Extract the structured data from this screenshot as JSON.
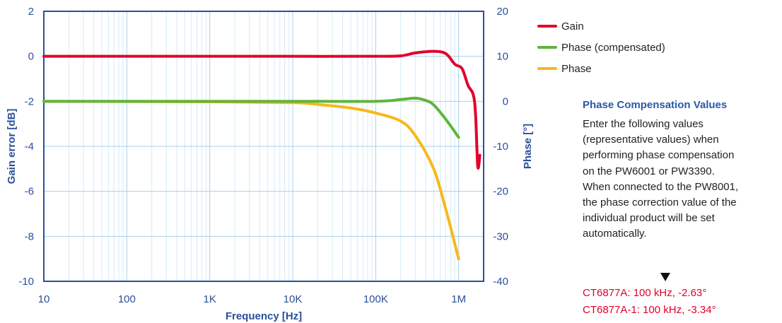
{
  "chart_data": {
    "type": "line",
    "xlabel": "Frequency [Hz]",
    "ylabel_left": "Gain error [dB]",
    "ylabel_right": "Phase [°]",
    "x_scale": "log",
    "xlim": [
      10,
      2000000
    ],
    "ylim_left": [
      -10,
      2
    ],
    "ylim_right": [
      -40,
      20
    ],
    "x_ticks": [
      {
        "value": 10,
        "label": "10"
      },
      {
        "value": 100,
        "label": "100"
      },
      {
        "value": 1000,
        "label": "1K"
      },
      {
        "value": 10000,
        "label": "10K"
      },
      {
        "value": 100000,
        "label": "100K"
      },
      {
        "value": 1000000,
        "label": "1M"
      }
    ],
    "y_ticks_left": [
      2,
      0,
      -2,
      -4,
      -6,
      -8,
      -10
    ],
    "y_ticks_right": [
      20,
      10,
      0,
      -10,
      -20,
      -30,
      -40
    ],
    "grid": true,
    "legend_position": "right",
    "series": [
      {
        "name": "Gain",
        "axis": "left",
        "color": "#e2002b",
        "x": [
          10,
          100,
          1000,
          10000,
          100000,
          200000,
          300000,
          500000,
          700000,
          900000,
          1100000,
          1300000,
          1500000,
          1600000,
          1700000,
          1800000
        ],
        "y": [
          0,
          0,
          0,
          0,
          0,
          0.02,
          0.15,
          0.22,
          0.12,
          -0.35,
          -0.55,
          -1.3,
          -1.7,
          -2.6,
          -4.9,
          -4.4
        ]
      },
      {
        "name": "Phase (compensated)",
        "axis": "right",
        "color": "#5fb53a",
        "x": [
          10,
          100,
          1000,
          10000,
          100000,
          200000,
          300000,
          400000,
          500000,
          700000,
          1000000
        ],
        "y": [
          0,
          0,
          0,
          0,
          0,
          0.4,
          0.7,
          0.2,
          -0.8,
          -4,
          -8
        ]
      },
      {
        "name": "Phase",
        "axis": "right",
        "color": "#f7b81a",
        "x": [
          10,
          1000,
          10000,
          20000,
          50000,
          100000,
          200000,
          300000,
          500000,
          700000,
          1000000
        ],
        "y": [
          0,
          -0.1,
          -0.3,
          -0.7,
          -1.5,
          -2.6,
          -4.4,
          -7.6,
          -15,
          -24,
          -35
        ]
      }
    ]
  },
  "info_box": {
    "title": "Phase Compensation Values",
    "lines": [
      "Enter the following values",
      "(representative values) when",
      "performing phase compensation",
      "on the PW6001 or PW3390.",
      "When connected to the PW8001,",
      "the phase correction value of the",
      "individual product will be set",
      "automatically."
    ],
    "arrow": "▼",
    "values": [
      "CT6877A: 100 kHz, -2.63°",
      "CT6877A-1: 100 kHz, -3.34°"
    ]
  },
  "colors": {
    "axis": "#2a4f9a",
    "grid": "#cfe6f5",
    "highlight_text": "#e0002a"
  }
}
